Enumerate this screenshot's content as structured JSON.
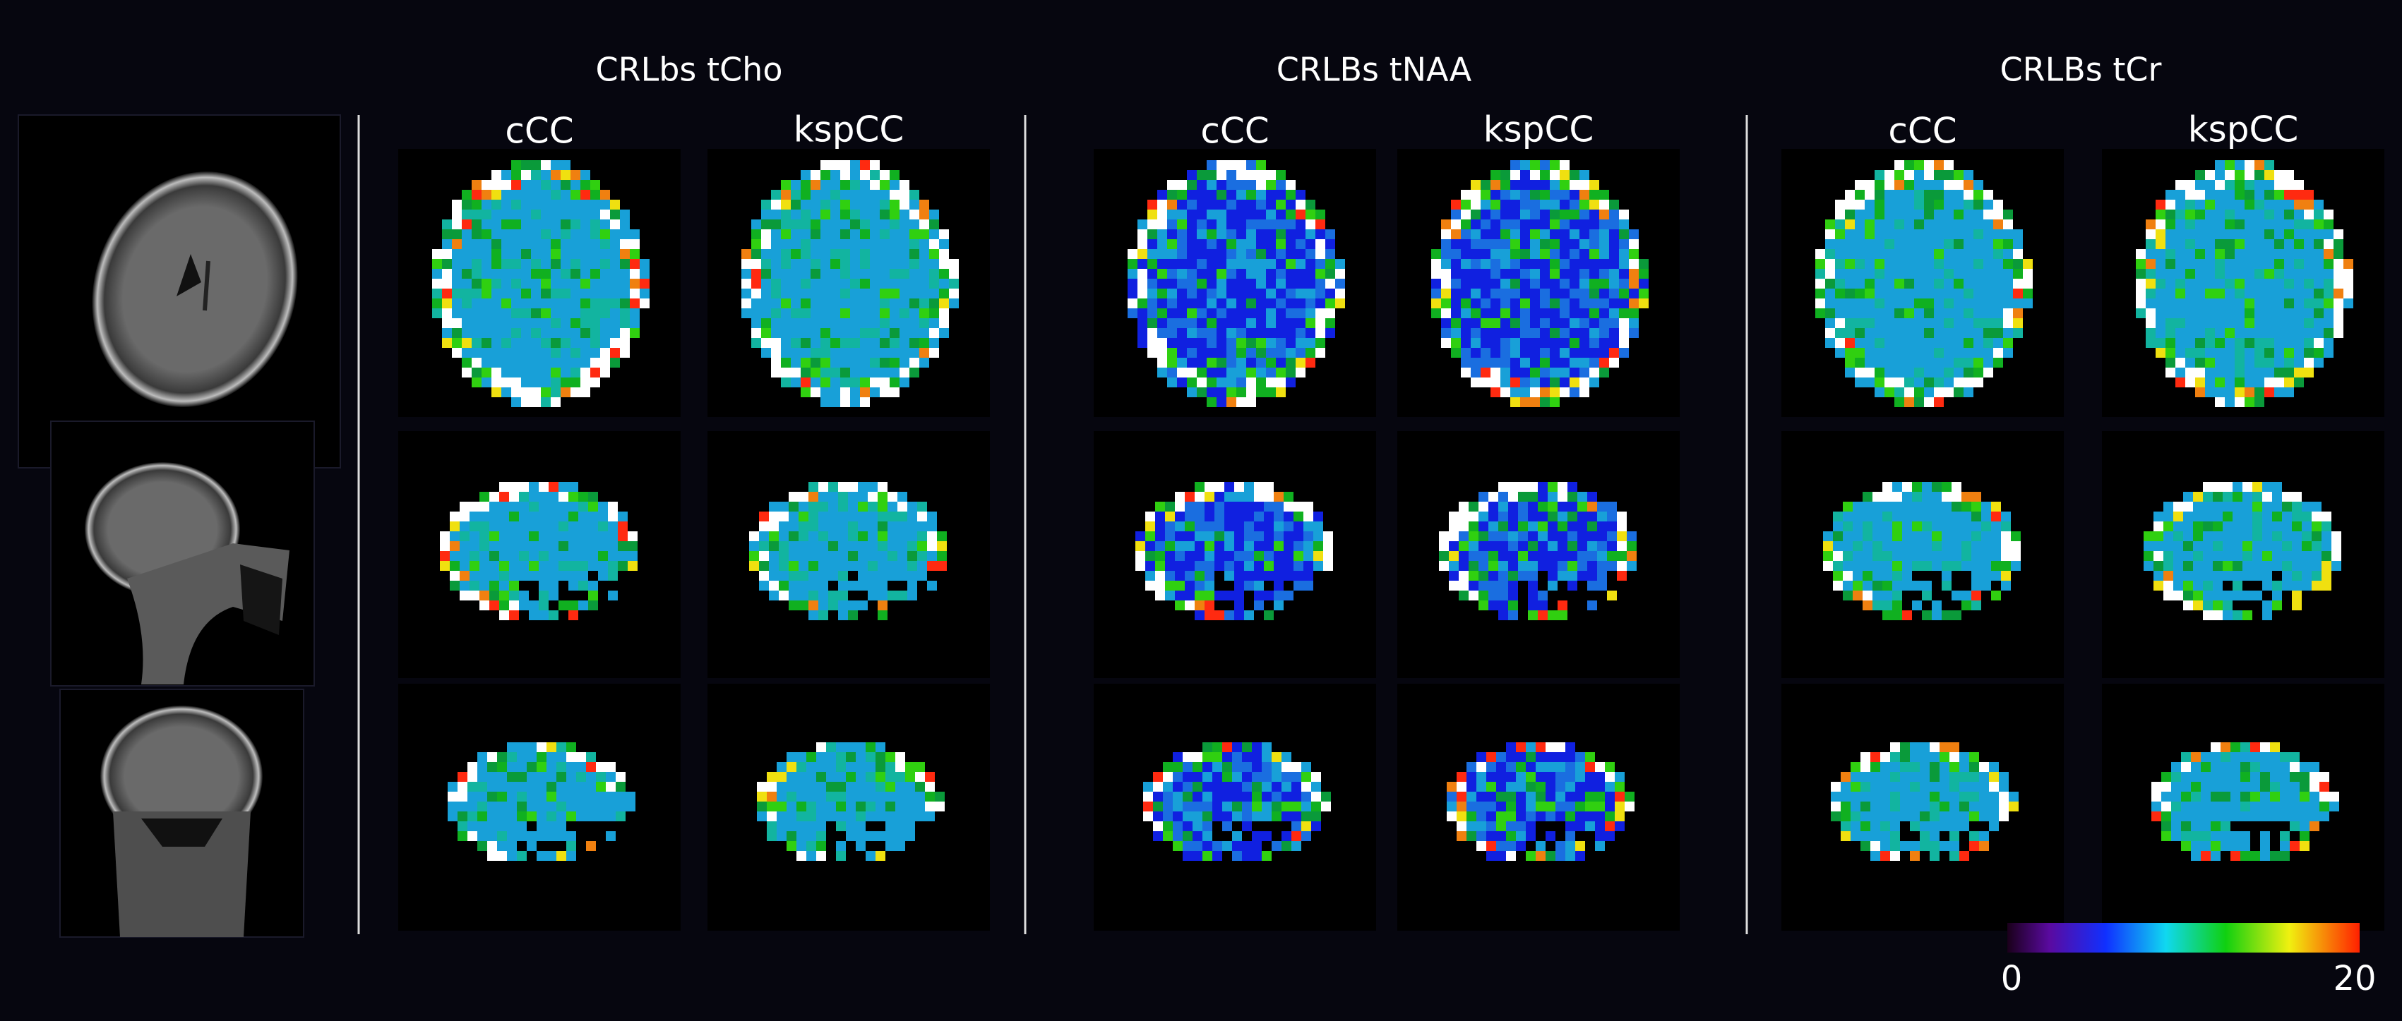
{
  "groups": [
    {
      "title": "CRLbs tCho",
      "columns": [
        "cCC",
        "kspCC"
      ]
    },
    {
      "title": "CRLBs tNAA",
      "columns": [
        "cCC",
        "kspCC"
      ]
    },
    {
      "title": "CRLBs tCr",
      "columns": [
        "cCC",
        "kspCC"
      ]
    }
  ],
  "colorbar": {
    "min": 0,
    "max": 20
  }
}
